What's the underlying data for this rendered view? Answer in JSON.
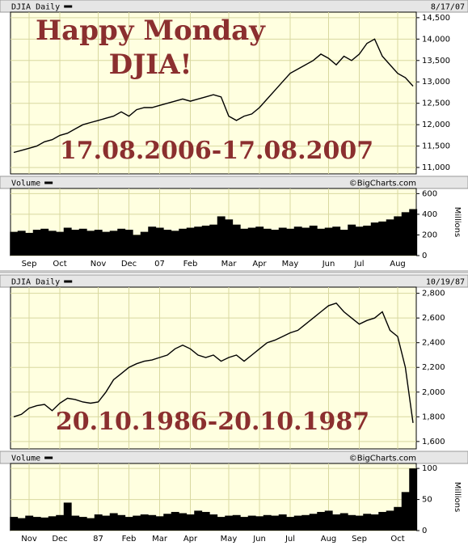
{
  "chart_data": [
    {
      "type": "line",
      "title": "DJIA Daily",
      "date": "8/17/07",
      "annotations": [
        "Happy Monday",
        "DJIA!",
        "17.08.2006-17.08.2007"
      ],
      "color": "#000000",
      "grid": true,
      "values": [
        11350,
        11400,
        11450,
        11500,
        11600,
        11650,
        11750,
        11800,
        11900,
        12000,
        12050,
        12100,
        12150,
        12200,
        12300,
        12200,
        12350,
        12400,
        12400,
        12450,
        12500,
        12550,
        12600,
        12550,
        12600,
        12650,
        12700,
        12650,
        12200,
        12100,
        12200,
        12250,
        12400,
        12600,
        12800,
        13000,
        13200,
        13300,
        13400,
        13500,
        13650,
        13550,
        13400,
        13600,
        13500,
        13650,
        13900,
        14000,
        13600,
        13400,
        13200,
        13100,
        12900
      ],
      "ylim": [
        10850,
        14630
      ],
      "yticks": [
        {
          "value": 11000,
          "label": "11,000"
        },
        {
          "value": 11500,
          "label": "11,500"
        },
        {
          "value": 12000,
          "label": "12,000"
        },
        {
          "value": 12500,
          "label": "12,500"
        },
        {
          "value": 13000,
          "label": "13,000"
        },
        {
          "value": 13500,
          "label": "13,500"
        },
        {
          "value": 14000,
          "label": "14,000"
        },
        {
          "value": 14500,
          "label": "14,500"
        }
      ]
    },
    {
      "type": "bar",
      "title": "Volume",
      "source": "©BigCharts.com",
      "y_label": "Millions",
      "color": "#000000",
      "grid": true,
      "categories": [
        null,
        null,
        "Sep",
        null,
        null,
        null,
        "Oct",
        null,
        null,
        null,
        null,
        "Nov",
        null,
        null,
        null,
        "Dec",
        null,
        null,
        null,
        "07",
        null,
        null,
        null,
        "Feb",
        null,
        null,
        null,
        null,
        "Mar",
        null,
        null,
        null,
        "Apr",
        null,
        null,
        null,
        "May",
        null,
        null,
        null,
        null,
        "Jun",
        null,
        null,
        null,
        "Jul",
        null,
        null,
        null,
        null,
        "Aug",
        null,
        null
      ],
      "values": [
        230,
        240,
        220,
        250,
        260,
        240,
        230,
        270,
        250,
        260,
        240,
        250,
        230,
        240,
        260,
        250,
        200,
        230,
        280,
        270,
        250,
        240,
        260,
        270,
        280,
        290,
        300,
        380,
        350,
        300,
        260,
        270,
        280,
        260,
        250,
        270,
        260,
        280,
        270,
        290,
        260,
        270,
        280,
        250,
        300,
        280,
        290,
        320,
        330,
        350,
        380,
        420,
        450
      ],
      "ylim": [
        0,
        650
      ],
      "yticks": [
        0,
        200,
        400,
        600
      ]
    },
    {
      "type": "line",
      "title": "DJIA Daily",
      "date": "10/19/87",
      "annotations": [
        "20.10.1986-20.10.1987"
      ],
      "color": "#000000",
      "grid": true,
      "values": [
        1800,
        1820,
        1870,
        1890,
        1900,
        1850,
        1910,
        1950,
        1940,
        1920,
        1910,
        1920,
        2000,
        2100,
        2150,
        2200,
        2230,
        2250,
        2260,
        2280,
        2300,
        2350,
        2380,
        2350,
        2300,
        2280,
        2300,
        2250,
        2280,
        2300,
        2250,
        2300,
        2350,
        2400,
        2420,
        2450,
        2480,
        2500,
        2550,
        2600,
        2650,
        2700,
        2720,
        2650,
        2600,
        2550,
        2580,
        2600,
        2650,
        2500,
        2450,
        2200,
        1750
      ],
      "ylim": [
        1540,
        2850
      ],
      "yticks": [
        {
          "value": 1600,
          "label": "1,600"
        },
        {
          "value": 1800,
          "label": "1,800"
        },
        {
          "value": 2000,
          "label": "2,000"
        },
        {
          "value": 2200,
          "label": "2,200"
        },
        {
          "value": 2400,
          "label": "2,400"
        },
        {
          "value": 2600,
          "label": "2,600"
        },
        {
          "value": 2800,
          "label": "2,800"
        }
      ]
    },
    {
      "type": "bar",
      "title": "Volume",
      "source": "©BigCharts.com",
      "y_label": "Millions",
      "color": "#000000",
      "grid": true,
      "categories": [
        null,
        null,
        "Nov",
        null,
        null,
        null,
        "Dec",
        null,
        null,
        null,
        null,
        "87",
        null,
        null,
        null,
        "Feb",
        null,
        null,
        null,
        "Mar",
        null,
        null,
        null,
        "Apr",
        null,
        null,
        null,
        null,
        "May",
        null,
        null,
        null,
        "Jun",
        null,
        null,
        null,
        "Jul",
        null,
        null,
        null,
        null,
        "Aug",
        null,
        null,
        null,
        "Sep",
        null,
        null,
        null,
        null,
        "Oct",
        null,
        null
      ],
      "values": [
        22,
        20,
        24,
        22,
        21,
        23,
        25,
        45,
        24,
        22,
        20,
        26,
        24,
        28,
        25,
        22,
        24,
        26,
        25,
        23,
        27,
        30,
        28,
        26,
        32,
        30,
        26,
        22,
        24,
        25,
        22,
        24,
        23,
        25,
        24,
        26,
        22,
        24,
        25,
        27,
        30,
        32,
        26,
        28,
        25,
        24,
        27,
        26,
        30,
        32,
        38,
        62,
        100
      ],
      "ylim": [
        0,
        108
      ],
      "yticks": [
        0,
        50,
        100
      ]
    }
  ]
}
